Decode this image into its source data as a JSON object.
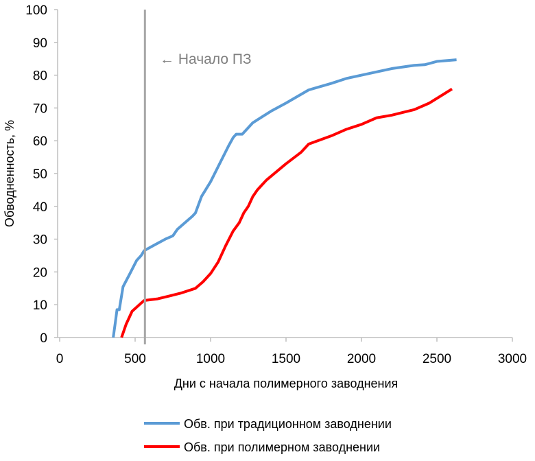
{
  "chart_data": {
    "type": "line",
    "title": "",
    "xlabel": "Дни с начала полимерного заводнения",
    "ylabel": "Обводненность, %",
    "xlim": [
      0,
      3000
    ],
    "ylim": [
      0,
      100
    ],
    "xticks": [
      0,
      500,
      1000,
      1500,
      2000,
      2500,
      3000
    ],
    "yticks": [
      0,
      10,
      20,
      30,
      40,
      50,
      60,
      70,
      80,
      90,
      100
    ],
    "grid": false,
    "legend_position": "bottom",
    "annotation": {
      "text": "← Начало ПЗ",
      "x": 565,
      "color": "#a6a6a6"
    },
    "series": [
      {
        "name": "Обв. при традиционном заводнении",
        "color": "#5b9bd5",
        "points": [
          [
            355,
            0
          ],
          [
            370,
            5
          ],
          [
            380,
            8.5
          ],
          [
            395,
            8.5
          ],
          [
            420,
            15.5
          ],
          [
            460,
            19
          ],
          [
            510,
            23.5
          ],
          [
            540,
            25
          ],
          [
            560,
            26.5
          ],
          [
            620,
            28
          ],
          [
            700,
            30
          ],
          [
            750,
            31
          ],
          [
            780,
            33
          ],
          [
            880,
            37
          ],
          [
            900,
            38
          ],
          [
            940,
            43
          ],
          [
            1000,
            47.5
          ],
          [
            1060,
            53
          ],
          [
            1120,
            58.5
          ],
          [
            1150,
            61
          ],
          [
            1170,
            62
          ],
          [
            1210,
            62
          ],
          [
            1280,
            65.5
          ],
          [
            1400,
            69
          ],
          [
            1500,
            71.5
          ],
          [
            1650,
            75.5
          ],
          [
            1800,
            77.5
          ],
          [
            1900,
            79
          ],
          [
            2050,
            80.5
          ],
          [
            2200,
            82
          ],
          [
            2350,
            83
          ],
          [
            2420,
            83.2
          ],
          [
            2500,
            84.2
          ],
          [
            2630,
            84.7
          ]
        ]
      },
      {
        "name": "Обв. при полимерном заводнении",
        "color": "#ff0000",
        "points": [
          [
            410,
            0
          ],
          [
            440,
            4
          ],
          [
            480,
            8
          ],
          [
            540,
            10.5
          ],
          [
            560,
            11.3
          ],
          [
            650,
            11.8
          ],
          [
            730,
            12.7
          ],
          [
            800,
            13.5
          ],
          [
            900,
            15
          ],
          [
            950,
            17
          ],
          [
            1000,
            19.5
          ],
          [
            1050,
            23
          ],
          [
            1100,
            28
          ],
          [
            1150,
            32.5
          ],
          [
            1190,
            35
          ],
          [
            1220,
            38
          ],
          [
            1250,
            40
          ],
          [
            1280,
            43
          ],
          [
            1310,
            45
          ],
          [
            1370,
            48
          ],
          [
            1500,
            53
          ],
          [
            1600,
            56.5
          ],
          [
            1650,
            59
          ],
          [
            1800,
            61.5
          ],
          [
            1900,
            63.5
          ],
          [
            2000,
            65
          ],
          [
            2100,
            67
          ],
          [
            2200,
            67.8
          ],
          [
            2280,
            68.7
          ],
          [
            2350,
            69.5
          ],
          [
            2450,
            71.5
          ],
          [
            2600,
            75.8
          ]
        ]
      }
    ]
  }
}
